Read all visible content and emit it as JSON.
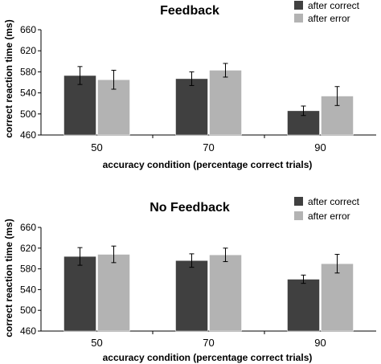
{
  "chart_data": [
    {
      "type": "bar",
      "title": "Feedback",
      "xlabel": "accuracy condition (percentage correct trials)",
      "ylabel": "correct reaction time (ms)",
      "ylim": [
        460,
        660
      ],
      "yticks": [
        "460",
        "500",
        "540",
        "580",
        "620",
        "660"
      ],
      "categories": [
        "50",
        "70",
        "90"
      ],
      "series": [
        {
          "name": "after correct",
          "color": "#404040",
          "values": [
            573,
            567,
            506
          ],
          "errors": [
            17,
            13,
            9
          ]
        },
        {
          "name": "after error",
          "color": "#b3b3b3",
          "values": [
            565,
            583,
            534
          ],
          "errors": [
            18,
            13,
            18
          ]
        }
      ],
      "legend_position": "top-right",
      "grid": false,
      "error_bars": true
    },
    {
      "type": "bar",
      "title": "No Feedback",
      "xlabel": "accuracy condition (percentage correct trials)",
      "ylabel": "correct reaction time (ms)",
      "ylim": [
        460,
        660
      ],
      "yticks": [
        "460",
        "500",
        "540",
        "580",
        "620",
        "660"
      ],
      "categories": [
        "50",
        "70",
        "90"
      ],
      "series": [
        {
          "name": "after correct",
          "color": "#404040",
          "values": [
            604,
            596,
            560
          ],
          "errors": [
            17,
            13,
            8
          ]
        },
        {
          "name": "after error",
          "color": "#b3b3b3",
          "values": [
            608,
            607,
            590
          ],
          "errors": [
            16,
            13,
            18
          ]
        }
      ],
      "legend_position": "top-right",
      "grid": false,
      "error_bars": true
    }
  ]
}
